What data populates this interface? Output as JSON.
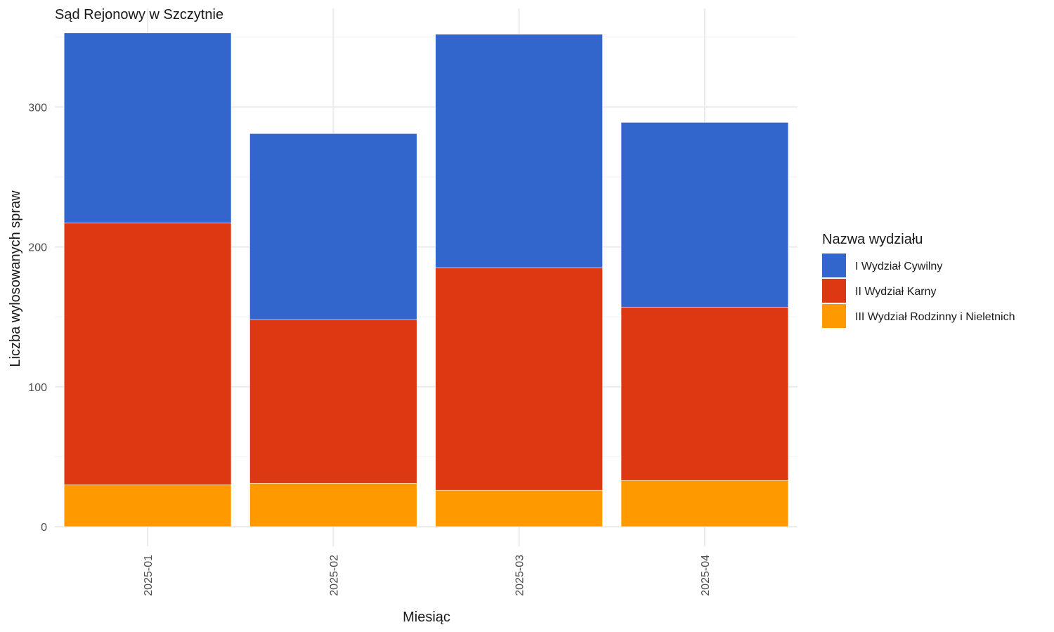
{
  "chart_data": {
    "type": "bar",
    "stacked": true,
    "title": "Sąd Rejonowy w Szczytnie",
    "xlabel": "Miesiąc",
    "ylabel": "Liczba wylosowanych spraw",
    "categories": [
      "2025-01",
      "2025-02",
      "2025-03",
      "2025-04"
    ],
    "ylim": [
      0,
      370
    ],
    "yticks": [
      0,
      100,
      200,
      300
    ],
    "grid": true,
    "legend": {
      "title": "Nazwa wydziału",
      "position": "right"
    },
    "series": [
      {
        "name": "III Wydział Rodzinny i Nieletnich",
        "color": "#ff9900",
        "values": [
          30,
          31,
          26,
          33
        ]
      },
      {
        "name": "II Wydział Karny",
        "color": "#dc3912",
        "values": [
          187,
          117,
          159,
          124
        ]
      },
      {
        "name": "I Wydział Cywilny",
        "color": "#3366cc",
        "values": [
          136,
          133,
          167,
          132
        ]
      }
    ],
    "legend_order": [
      "I Wydział Cywilny",
      "II Wydział Karny",
      "III Wydział Rodzinny i Nieletnich"
    ]
  }
}
